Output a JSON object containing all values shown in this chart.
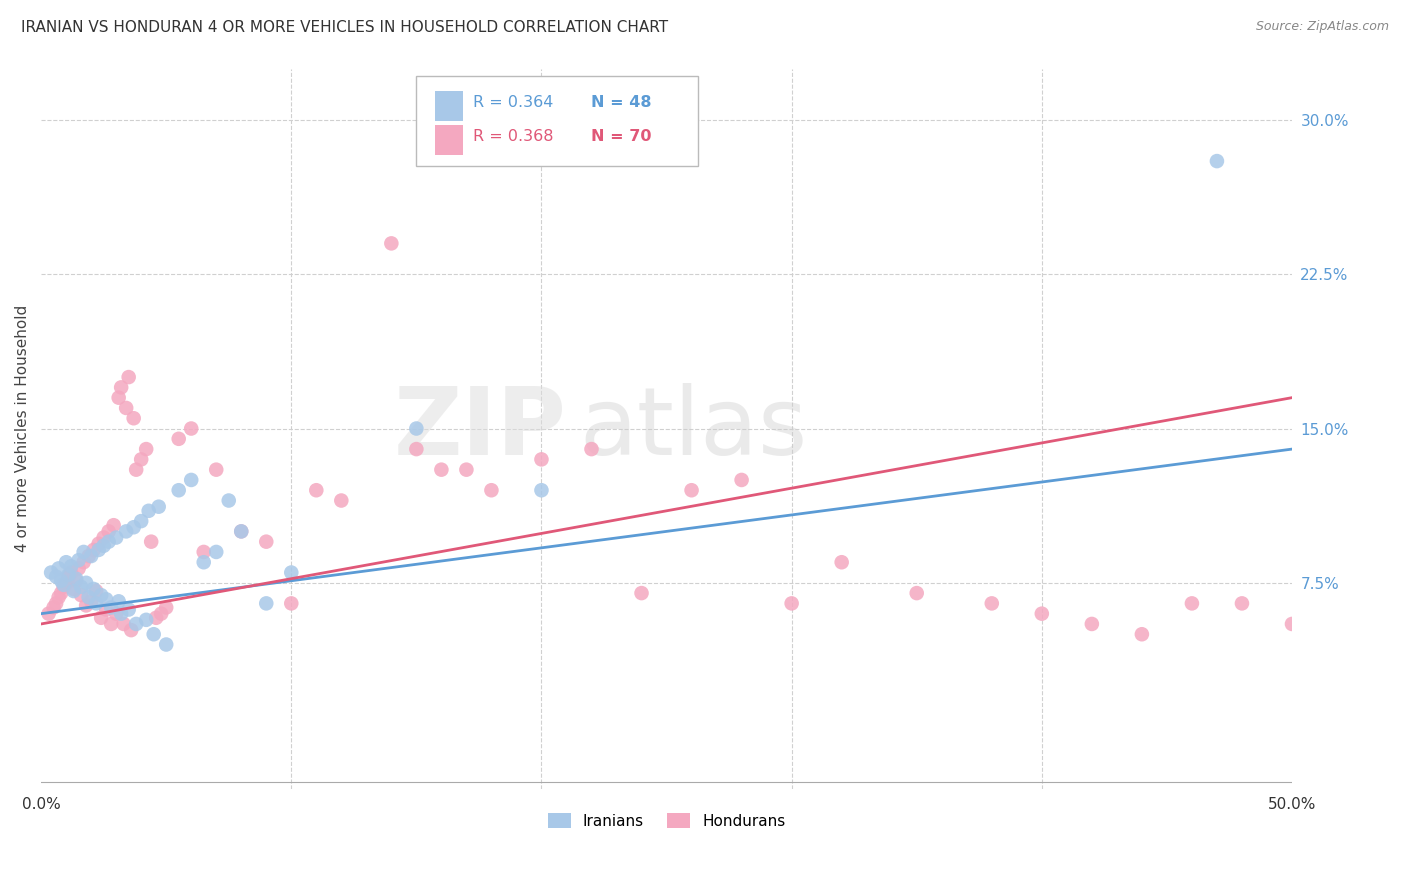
{
  "title": "IRANIAN VS HONDURAN 4 OR MORE VEHICLES IN HOUSEHOLD CORRELATION CHART",
  "source": "Source: ZipAtlas.com",
  "ylabel": "4 or more Vehicles in Household",
  "iranians_label": "Iranians",
  "hondurans_label": "Hondurans",
  "watermark_zip": "ZIP",
  "watermark_atlas": "atlas",
  "xlim": [
    0.0,
    0.5
  ],
  "ylim": [
    -0.025,
    0.325
  ],
  "xtick_positions": [
    0.0,
    0.1,
    0.2,
    0.3,
    0.4,
    0.5
  ],
  "xtick_labels": [
    "0.0%",
    "",
    "",
    "",
    "",
    "50.0%"
  ],
  "ytick_positions": [
    0.075,
    0.15,
    0.225,
    0.3
  ],
  "ytick_labels": [
    "7.5%",
    "15.0%",
    "22.5%",
    "30.0%"
  ],
  "iranian_color": "#a8c8e8",
  "honduran_color": "#f4a8c0",
  "iranian_line_color": "#5b9bd5",
  "honduran_line_color": "#e05878",
  "background_color": "#ffffff",
  "grid_color": "#d0d0d0",
  "right_axis_color": "#5b9bd5",
  "title_color": "#333333",
  "legend_blue": "#5b9bd5",
  "legend_pink": "#e05878",
  "iranian_x": [
    0.004,
    0.006,
    0.007,
    0.008,
    0.009,
    0.01,
    0.011,
    0.012,
    0.013,
    0.014,
    0.015,
    0.016,
    0.017,
    0.018,
    0.019,
    0.02,
    0.021,
    0.022,
    0.023,
    0.024,
    0.025,
    0.026,
    0.027,
    0.028,
    0.03,
    0.031,
    0.032,
    0.034,
    0.035,
    0.037,
    0.038,
    0.04,
    0.042,
    0.043,
    0.045,
    0.047,
    0.05,
    0.055,
    0.06,
    0.065,
    0.07,
    0.075,
    0.08,
    0.09,
    0.1,
    0.15,
    0.2,
    0.47
  ],
  "iranian_y": [
    0.08,
    0.078,
    0.082,
    0.076,
    0.074,
    0.085,
    0.079,
    0.083,
    0.071,
    0.077,
    0.086,
    0.073,
    0.09,
    0.075,
    0.068,
    0.088,
    0.072,
    0.065,
    0.091,
    0.069,
    0.093,
    0.067,
    0.095,
    0.063,
    0.097,
    0.066,
    0.06,
    0.1,
    0.062,
    0.102,
    0.055,
    0.105,
    0.057,
    0.11,
    0.05,
    0.112,
    0.045,
    0.12,
    0.125,
    0.085,
    0.09,
    0.115,
    0.1,
    0.065,
    0.08,
    0.15,
    0.12,
    0.28
  ],
  "honduran_x": [
    0.003,
    0.005,
    0.006,
    0.007,
    0.008,
    0.009,
    0.01,
    0.011,
    0.012,
    0.013,
    0.014,
    0.015,
    0.016,
    0.017,
    0.018,
    0.019,
    0.02,
    0.021,
    0.022,
    0.023,
    0.024,
    0.025,
    0.026,
    0.027,
    0.028,
    0.029,
    0.03,
    0.031,
    0.032,
    0.033,
    0.034,
    0.035,
    0.036,
    0.037,
    0.038,
    0.04,
    0.042,
    0.044,
    0.046,
    0.048,
    0.05,
    0.055,
    0.06,
    0.065,
    0.07,
    0.08,
    0.09,
    0.1,
    0.11,
    0.12,
    0.14,
    0.16,
    0.18,
    0.2,
    0.22,
    0.28,
    0.3,
    0.32,
    0.35,
    0.38,
    0.4,
    0.42,
    0.44,
    0.46,
    0.48,
    0.5,
    0.26,
    0.24,
    0.15,
    0.17
  ],
  "honduran_y": [
    0.06,
    0.063,
    0.065,
    0.068,
    0.07,
    0.073,
    0.075,
    0.078,
    0.08,
    0.072,
    0.076,
    0.082,
    0.069,
    0.085,
    0.064,
    0.088,
    0.066,
    0.091,
    0.071,
    0.094,
    0.058,
    0.097,
    0.062,
    0.1,
    0.055,
    0.103,
    0.06,
    0.165,
    0.17,
    0.055,
    0.16,
    0.175,
    0.052,
    0.155,
    0.13,
    0.135,
    0.14,
    0.095,
    0.058,
    0.06,
    0.063,
    0.145,
    0.15,
    0.09,
    0.13,
    0.1,
    0.095,
    0.065,
    0.12,
    0.115,
    0.24,
    0.13,
    0.12,
    0.135,
    0.14,
    0.125,
    0.065,
    0.085,
    0.07,
    0.065,
    0.06,
    0.055,
    0.05,
    0.065,
    0.065,
    0.055,
    0.12,
    0.07,
    0.14,
    0.13
  ],
  "iran_line_x": [
    0.0,
    0.5
  ],
  "iran_line_y": [
    0.06,
    0.14
  ],
  "hond_line_x": [
    0.0,
    0.5
  ],
  "hond_line_y": [
    0.055,
    0.165
  ]
}
